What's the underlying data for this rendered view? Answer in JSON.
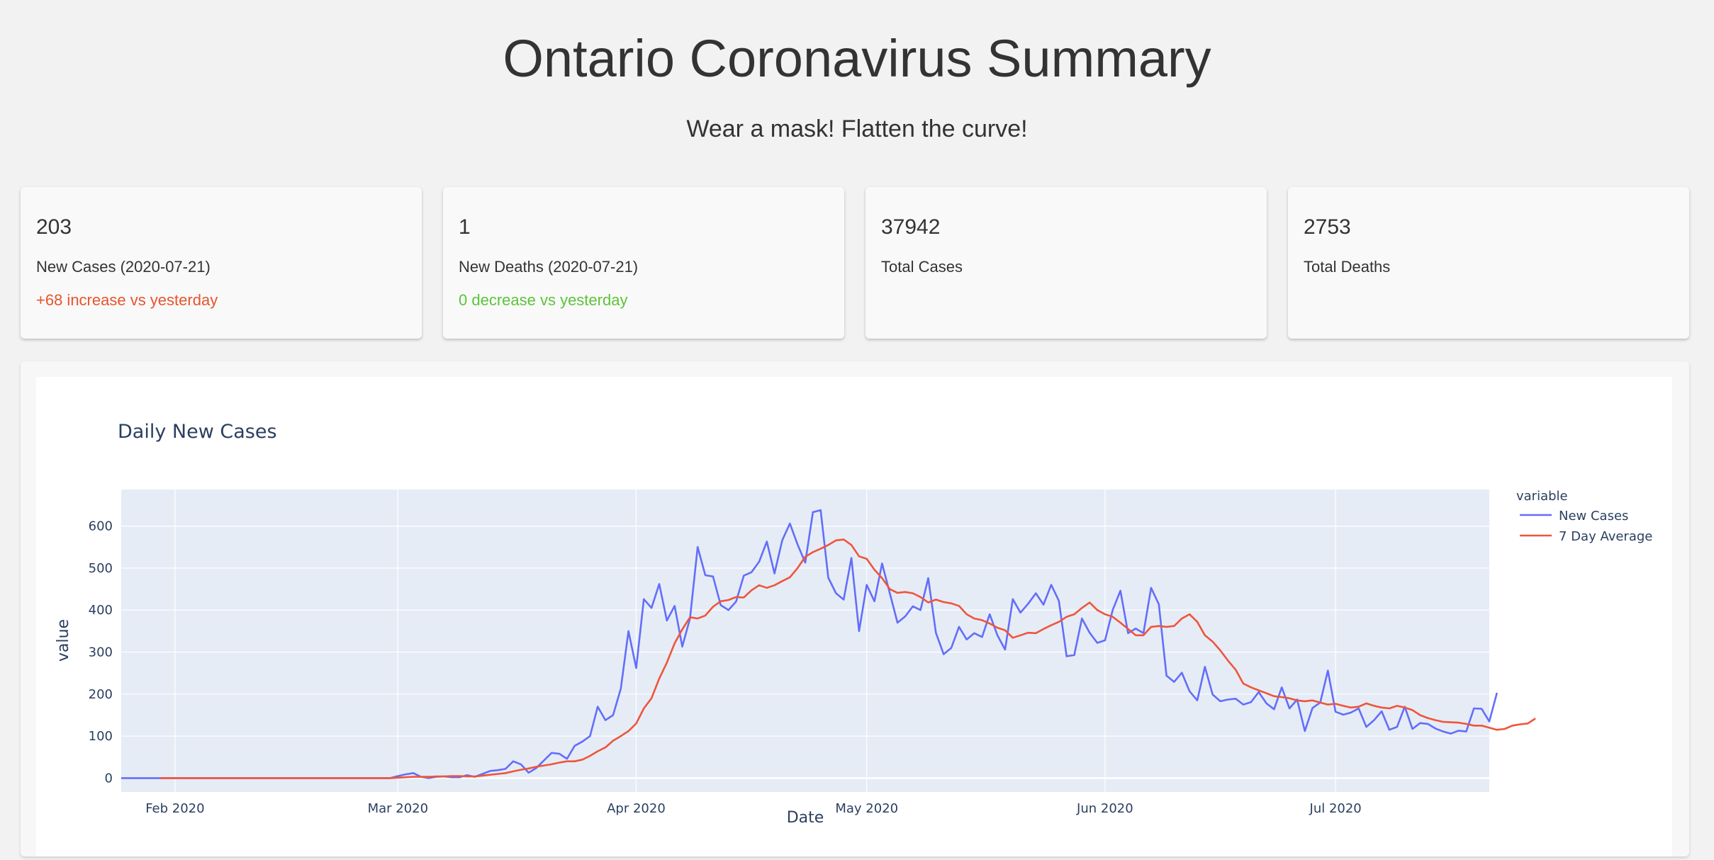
{
  "header": {
    "title": "Ontario Coronavirus Summary",
    "subtitle": "Wear a mask! Flatten the curve!"
  },
  "cards": [
    {
      "value": "203",
      "label": "New Cases (2020-07-21)",
      "delta": "+68 increase vs yesterday",
      "delta_color": "#e8542c"
    },
    {
      "value": "1",
      "label": "New Deaths (2020-07-21)",
      "delta": "0 decrease vs yesterday",
      "delta_color": "#5cc43a"
    },
    {
      "value": "37942",
      "label": "Total Cases",
      "delta": ""
    },
    {
      "value": "2753",
      "label": "Total Deaths",
      "delta": ""
    }
  ],
  "chart_data": {
    "type": "line",
    "title": "Daily New Cases",
    "xlabel": "Date",
    "ylabel": "value",
    "legend_title": "variable",
    "legend_position": "right",
    "grid": true,
    "ylim": [
      -33,
      687
    ],
    "xlim": [
      "2020-01-25",
      "2020-07-21"
    ],
    "x_ticks": [
      {
        "date": "2020-02-01",
        "label": "Feb 2020"
      },
      {
        "date": "2020-03-01",
        "label": "Mar 2020"
      },
      {
        "date": "2020-04-01",
        "label": "Apr 2020"
      },
      {
        "date": "2020-05-01",
        "label": "May 2020"
      },
      {
        "date": "2020-06-01",
        "label": "Jun 2020"
      },
      {
        "date": "2020-07-01",
        "label": "Jul 2020"
      }
    ],
    "y_ticks": [
      0,
      100,
      200,
      300,
      400,
      500,
      600
    ],
    "colors": {
      "plot_bg": "#e5ecf6",
      "grid": "#ffffff",
      "text": "#2a3f5f"
    },
    "series": [
      {
        "name": "New Cases",
        "color": "#636efa",
        "x_start": "2020-01-25",
        "values": [
          0,
          0,
          0,
          0,
          0,
          0,
          0,
          0,
          0,
          0,
          0,
          0,
          0,
          0,
          0,
          0,
          0,
          0,
          0,
          0,
          0,
          0,
          0,
          0,
          0,
          0,
          0,
          0,
          0,
          0,
          0,
          0,
          0,
          0,
          0,
          0,
          5,
          9,
          12,
          3,
          0,
          3,
          4,
          2,
          2,
          7,
          3,
          10,
          17,
          19,
          22,
          40,
          33,
          13,
          24,
          42,
          60,
          58,
          46,
          77,
          87,
          100,
          170,
          138,
          150,
          213,
          350,
          262,
          426,
          405,
          462,
          375,
          410,
          313,
          380,
          550,
          483,
          480,
          412,
          400,
          420,
          482,
          490,
          515,
          563,
          487,
          566,
          606,
          556,
          513,
          633,
          638,
          477,
          440,
          425,
          524,
          350,
          460,
          421,
          511,
          440,
          370,
          385,
          409,
          400,
          476,
          346,
          295,
          310,
          360,
          330,
          345,
          336,
          390,
          340,
          306,
          426,
          394,
          415,
          440,
          413,
          460,
          422,
          290,
          293,
          380,
          346,
          322,
          328,
          400,
          446,
          345,
          356,
          345,
          453,
          414,
          244,
          229,
          251,
          207,
          185,
          265,
          199,
          183,
          187,
          189,
          175,
          181,
          205,
          178,
          164,
          216,
          166,
          187,
          112,
          167,
          180,
          256,
          158,
          151,
          156,
          166,
          122,
          138,
          159,
          115,
          122,
          170,
          117,
          131,
          129,
          118,
          111,
          106,
          113,
          111,
          166,
          165,
          135,
          203
        ]
      },
      {
        "name": "7 Day Average",
        "color": "#ef553b",
        "x_start": "2020-01-30",
        "values": [
          0,
          0,
          0,
          0,
          0,
          0,
          0,
          0,
          0,
          0,
          0,
          0,
          0,
          0,
          0,
          0,
          0,
          0,
          0,
          0,
          0,
          0,
          0,
          0,
          0,
          0,
          0,
          0,
          0,
          0,
          0,
          1,
          2,
          3,
          3,
          3,
          4,
          4,
          5,
          5,
          4,
          4,
          6,
          8,
          10,
          12,
          16,
          20,
          23,
          27,
          30,
          33,
          37,
          40,
          40,
          44,
          53,
          64,
          73,
          89,
          100,
          112,
          130,
          166,
          190,
          237,
          275,
          321,
          354,
          383,
          380,
          387,
          408,
          421,
          424,
          431,
          430,
          447,
          459,
          453,
          459,
          469,
          478,
          500,
          527,
          538,
          546,
          555,
          566,
          568,
          555,
          528,
          522,
          496,
          476,
          450,
          441,
          443,
          440,
          431,
          418,
          425,
          419,
          416,
          410,
          390,
          380,
          376,
          368,
          358,
          352,
          334,
          340,
          346,
          345,
          355,
          364,
          372,
          384,
          390,
          405,
          418,
          400,
          390,
          384,
          370,
          355,
          340,
          340,
          360,
          362,
          360,
          362,
          380,
          390,
          372,
          340,
          325,
          304,
          280,
          258,
          225,
          216,
          209,
          202,
          195,
          193,
          190,
          185,
          183,
          185,
          180,
          175,
          177,
          172,
          168,
          170,
          178,
          172,
          168,
          166,
          172,
          168,
          162,
          150,
          143,
          138,
          134,
          133,
          132,
          129,
          125,
          125,
          120,
          115,
          117,
          125,
          128,
          130,
          142
        ]
      }
    ]
  }
}
